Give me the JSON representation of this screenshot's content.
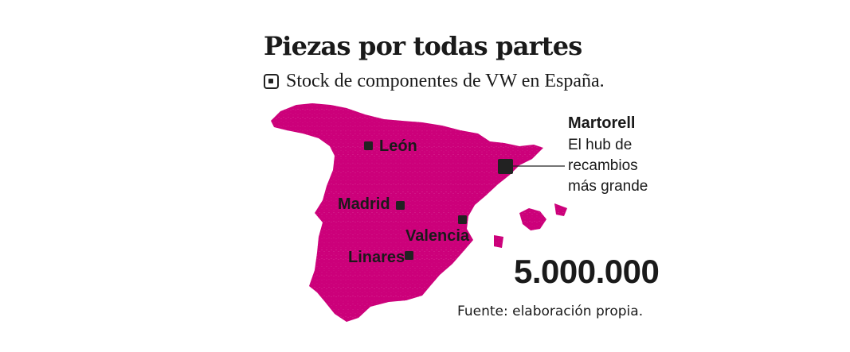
{
  "title": "Piezas por todas partes",
  "subtitle": "Stock de componentes de VW en España.",
  "legend_icon": "square-marker-icon",
  "map": {
    "fill_color": "#cc007a",
    "marker_color": "#222222",
    "cities": [
      {
        "name": "León"
      },
      {
        "name": "Madrid"
      },
      {
        "name": "Valencia"
      },
      {
        "name": "Linares"
      }
    ],
    "hub": {
      "name": "Martorell",
      "desc": [
        "El hub de",
        "recambios",
        "más grande"
      ]
    }
  },
  "total": "5.000.000",
  "source": "Fuente: elaboración propia."
}
